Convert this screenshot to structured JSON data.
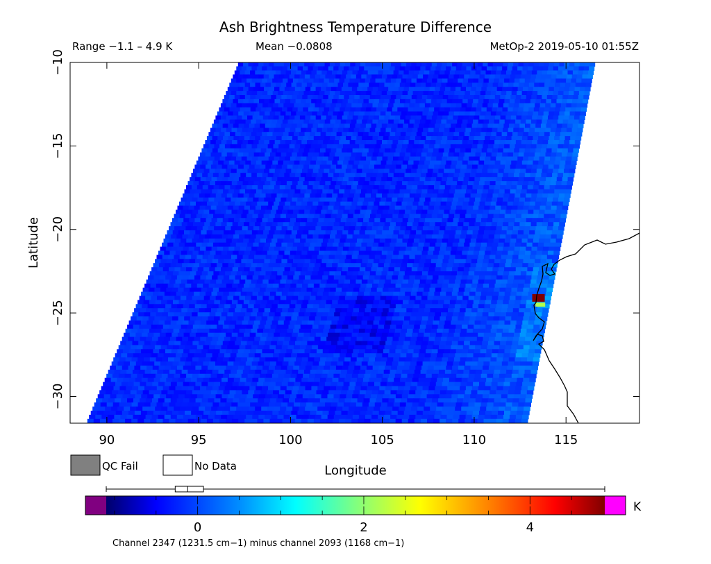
{
  "chart_data": {
    "type": "heatmap",
    "title": "Ash Brightness Temperature Difference",
    "header": {
      "range": "Range −1.1 – 4.9 K",
      "mean": "Mean −0.0808",
      "satellite": "MetOp-2 2019-05-10 01:55Z"
    },
    "xlabel": "Longitude",
    "ylabel": "Latitude",
    "xlim": [
      88,
      119
    ],
    "ylim": [
      -31.6,
      -10
    ],
    "xticks": [
      90,
      95,
      100,
      105,
      110,
      115
    ],
    "yticks": [
      -10,
      -15,
      -20,
      -25,
      -30
    ],
    "xtick_labels": [
      "90",
      "95",
      "100",
      "105",
      "110",
      "115"
    ],
    "ytick_labels": [
      "−10",
      "−15",
      "−20",
      "−25",
      "−30"
    ],
    "swath": {
      "left_edge": [
        [
          97.2,
          -10
        ],
        [
          88.9,
          -31.6
        ]
      ],
      "right_edge": [
        [
          116.6,
          -10
        ],
        [
          112.9,
          -31.6
        ]
      ]
    },
    "anomalies": [
      {
        "lon": 113.5,
        "lat": -24.1,
        "value": 4.9
      },
      {
        "lon": 113.6,
        "lat": -24.5,
        "value": 2.2
      }
    ],
    "value_range": [
      -1.1,
      4.9
    ],
    "mean_value": -0.0808,
    "legend": {
      "qc_fail": "QC Fail",
      "no_data": "No Data",
      "qc_fail_color": "#808080",
      "no_data_color": "#ffffff"
    },
    "colorbar": {
      "min": -1.1,
      "max": 4.9,
      "ticks": [
        0,
        2,
        4
      ],
      "tick_labels": [
        "0",
        "2",
        "4"
      ],
      "unit": "K",
      "under_color": "#800080",
      "over_color": "#ff00ff",
      "stops": [
        "#00006a",
        "#0000ff",
        "#0090ff",
        "#00ffff",
        "#80ff80",
        "#ffff00",
        "#ff8000",
        "#ff0000",
        "#800000"
      ],
      "boxplot": {
        "whisker_low": -1.1,
        "q1": -0.27,
        "median": -0.12,
        "q3": 0.07,
        "whisker_high": 4.9
      }
    },
    "footnote": "Channel 2347 (1231.5 cm−1) minus channel 2093 (1168 cm−1)"
  }
}
